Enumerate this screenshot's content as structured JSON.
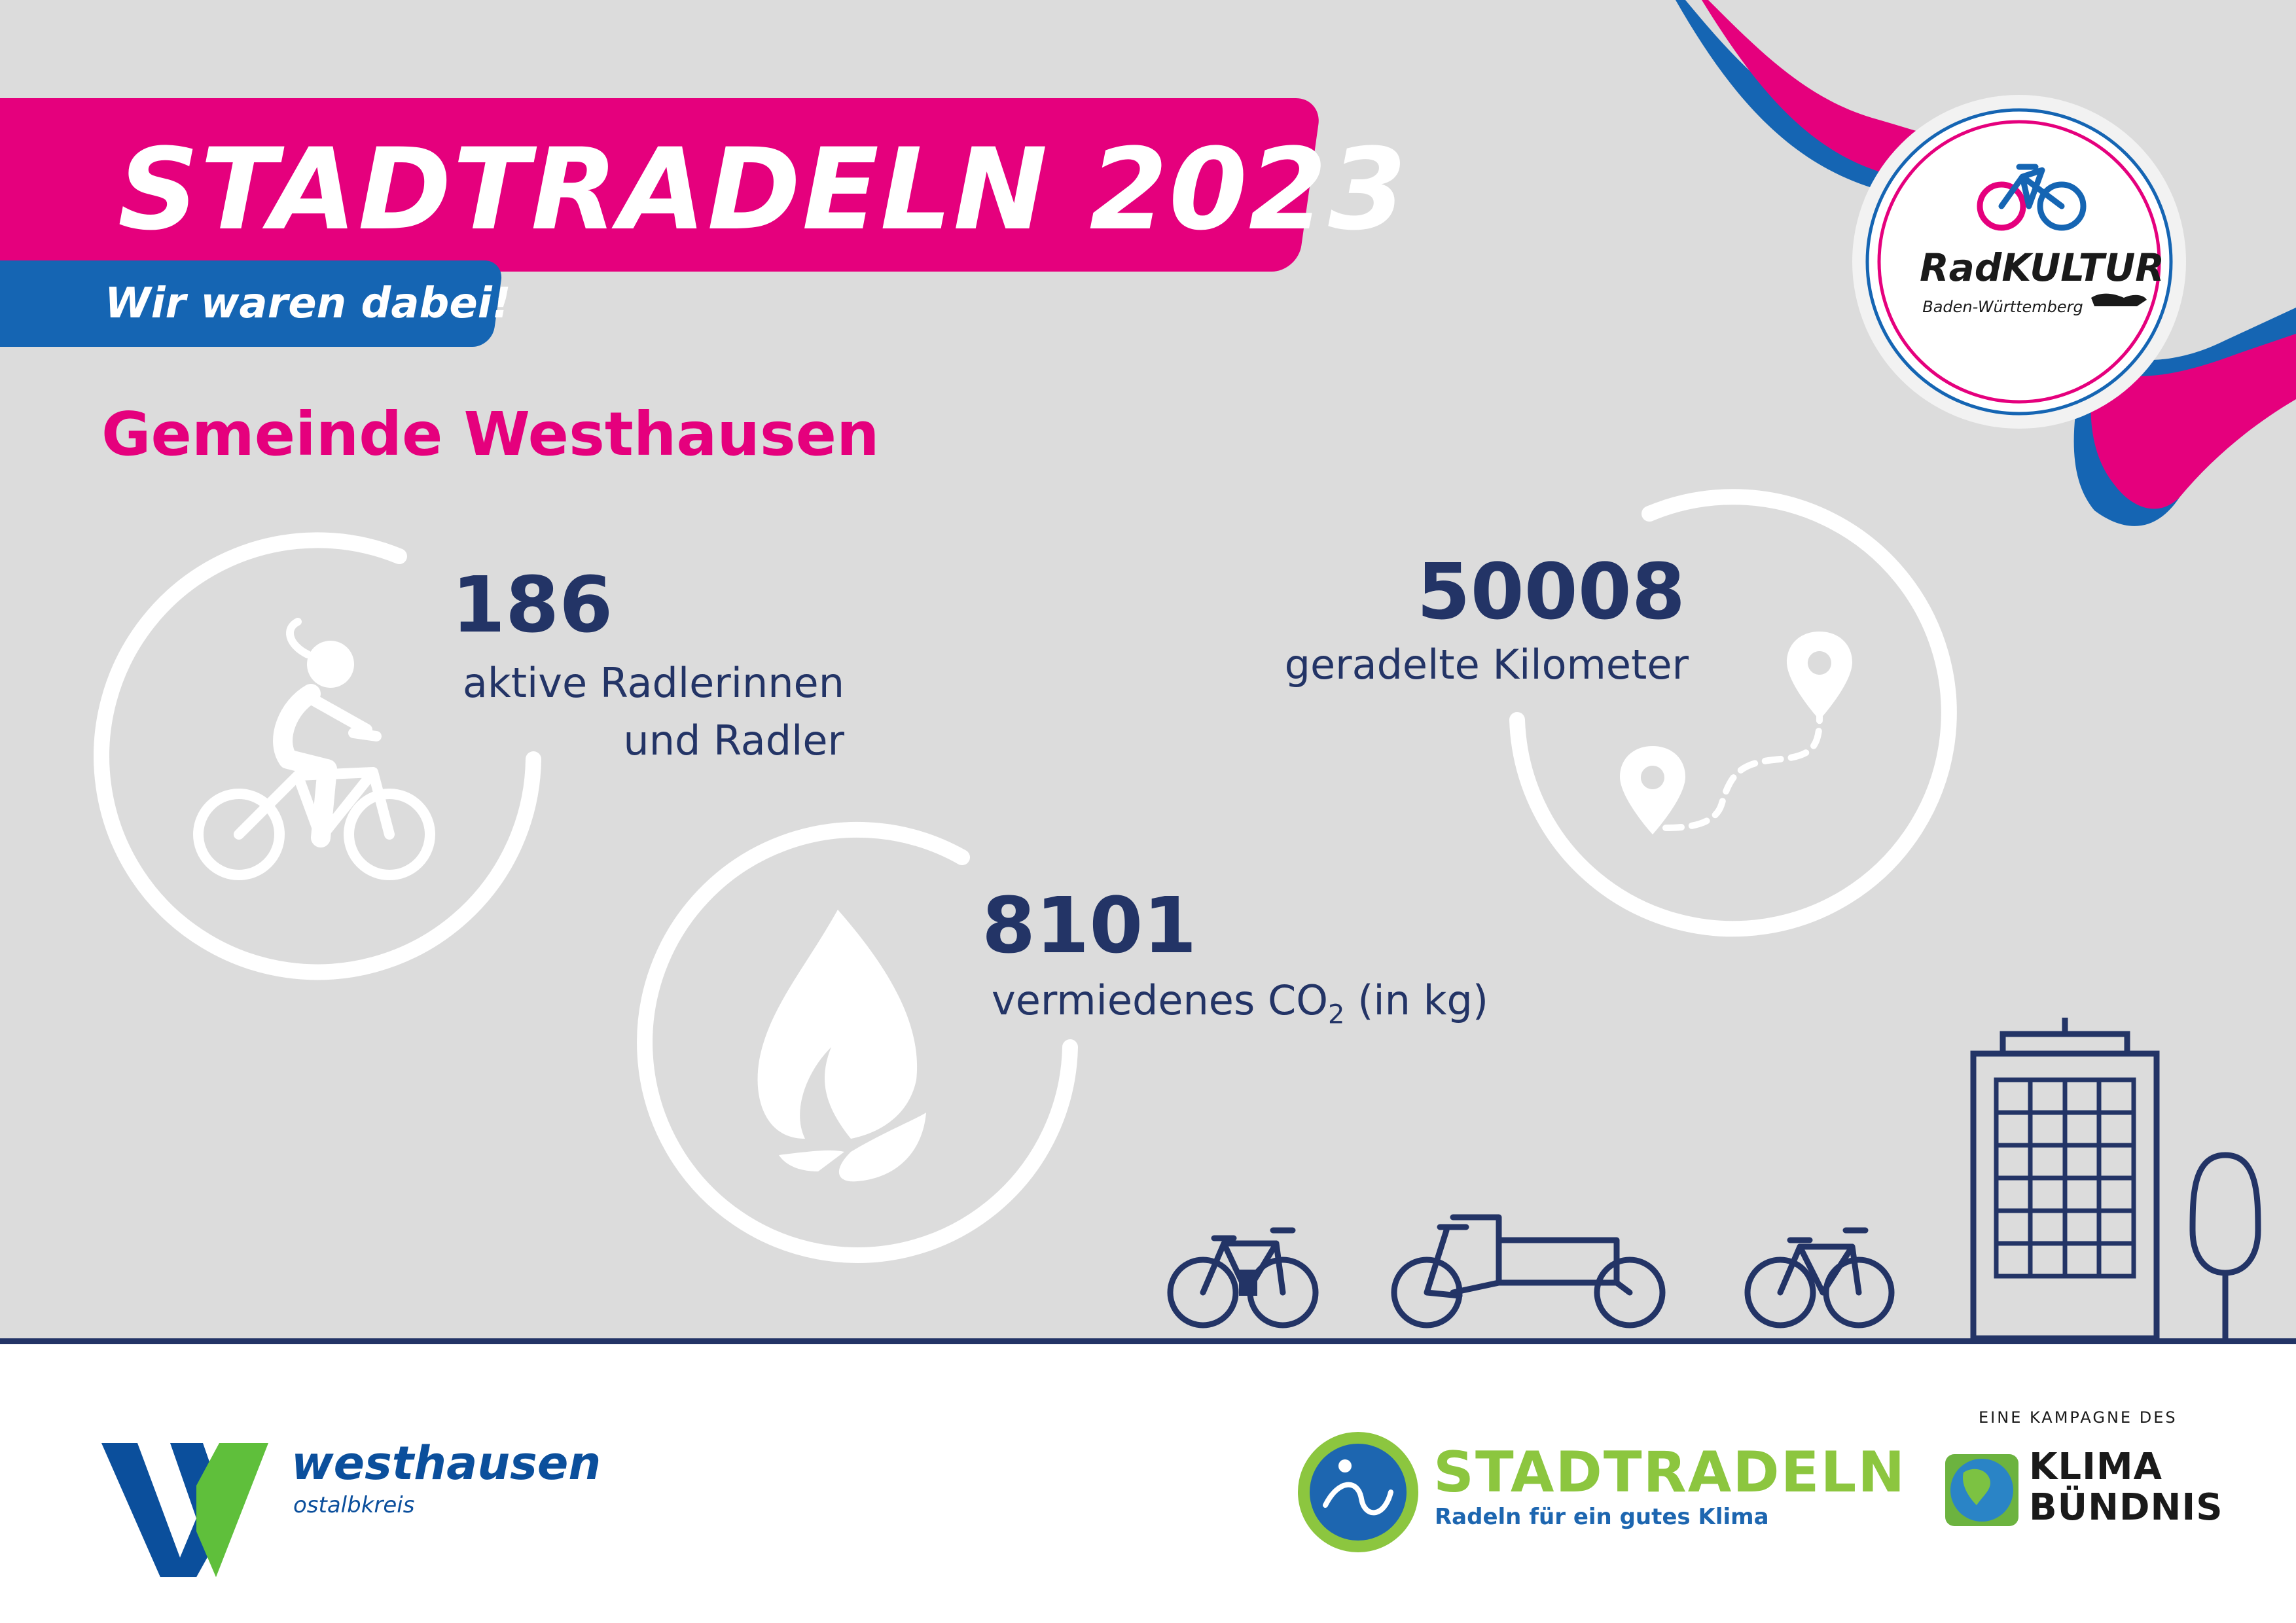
{
  "header": {
    "title": "STADTRADELN 2023",
    "subtitle": "Wir waren dabei!",
    "municipality": "Gemeinde Westhausen"
  },
  "stats": {
    "riders": {
      "value": "186",
      "label_line1": "aktive Radlerinnen",
      "label_line2": "und Radler"
    },
    "co2": {
      "value": "8101",
      "label_prefix": "vermiedenes CO",
      "label_sub": "2",
      "label_suffix": " (in kg)"
    },
    "kilometers": {
      "value": "50008",
      "label": "geradelte Kilometer"
    }
  },
  "logos": {
    "radkultur": {
      "name": "RadKULTUR",
      "region": "Baden-Württemberg"
    },
    "westhausen": {
      "name": "westhausen",
      "district": "ostalbkreis"
    },
    "stadtradeln": {
      "name": "STADTRADELN",
      "slogan": "Radeln für ein gutes Klima"
    },
    "klimabuendnis": {
      "caption": "EINE KAMPAGNE DES",
      "line1": "KLIMA",
      "line2": "BÜNDNIS"
    }
  },
  "colors": {
    "brand_pink": "#e5007d",
    "brand_blue": "#1565b3",
    "navy": "#233466",
    "background": "#dcdcdc",
    "green": "#8cc63f"
  },
  "icons": [
    "cyclist-icon",
    "leaf-icon",
    "route-icon",
    "map-pin-icon",
    "ebike-icon",
    "cargo-bike-icon",
    "bicycle-icon",
    "building-icon",
    "tree-icon",
    "globe-icon"
  ]
}
